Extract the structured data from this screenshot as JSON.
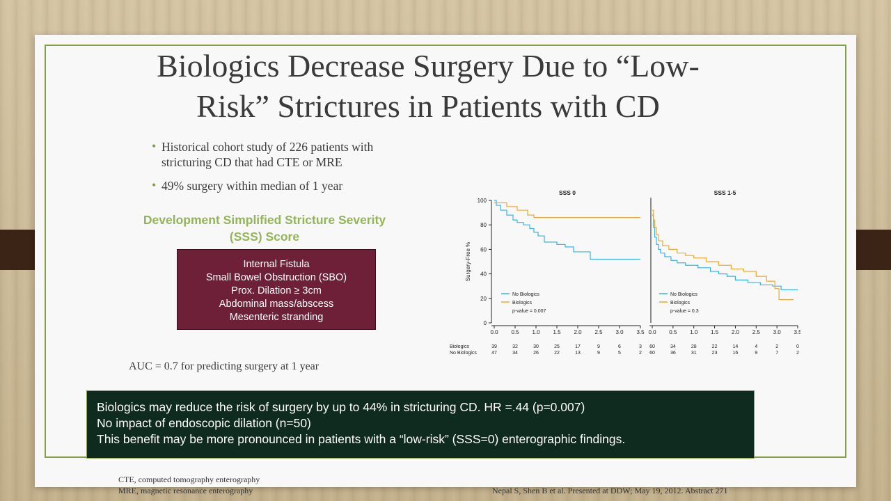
{
  "slide": {
    "title_line1": "Biologics Decrease Surgery Due to “Low-",
    "title_line2": "Risk” Strictures in Patients with CD",
    "bullets": [
      {
        "line1": "Historical cohort study of 226 patients with",
        "line2": "stricturing CD that had CTE or MRE"
      },
      {
        "line1": "49% surgery within median of 1 year",
        "line2": ""
      }
    ],
    "sss_heading_line1": "Development Simplified Stricture Severity",
    "sss_heading_line2": "(SSS) Score",
    "sss_items": [
      "Internal Fistula",
      "Small Bowel Obstruction (SBO)",
      "Prox. Dilation ≥ 3cm",
      "Abdominal mass/abscess",
      "Mesenteric stranding"
    ],
    "auc_text": "AUC = 0.7 for predicting surgery at 1 year",
    "callout_lines": [
      "Biologics may reduce the risk of surgery by up to 44% in stricturing CD. HR =.44 (p=0.007)",
      "No impact of endoscopic dilation (n=50)",
      "This benefit may be more pronounced in patients with a “low-risk” (SSS=0) enterographic findings."
    ],
    "footnote_line1": "CTE, computed tomography enterography",
    "footnote_line2": "MRE, magnetic resonance enterography",
    "citation": "Nepal S, Shen B et al. Presented at DDW; May 19, 2012. Abstract 271"
  },
  "colors": {
    "accent_green": "#86a046",
    "heading_green": "#94b45a",
    "box_maroon": "#6e2038",
    "callout_bg": "#0f2a1f",
    "no_biologics": "#33b5e5",
    "biologics": "#f0a830"
  },
  "chart_data": {
    "type": "line",
    "subtype": "kaplan-meier step",
    "ylabel": "Surgery-Free %",
    "ylim": [
      0,
      100
    ],
    "yticks": [
      "0",
      "20",
      "40",
      "60",
      "80",
      "100"
    ],
    "xlim": [
      0,
      3.5
    ],
    "xticks": [
      "0.0",
      "0.5",
      "1.0",
      "1.5",
      "2.0",
      "2.5",
      "3.0",
      "3.5"
    ],
    "panels": [
      {
        "title": "SSS 0",
        "legend": [
          "No Biologics",
          "Biologics",
          "p-value = 0.007"
        ],
        "series": [
          {
            "name": "No Biologics",
            "color": "#33b5e5",
            "points": [
              [
                0,
                100
              ],
              [
                0.05,
                96
              ],
              [
                0.15,
                92
              ],
              [
                0.3,
                88
              ],
              [
                0.45,
                84
              ],
              [
                0.55,
                82
              ],
              [
                0.7,
                80
              ],
              [
                0.85,
                77
              ],
              [
                0.95,
                74
              ],
              [
                1.05,
                71
              ],
              [
                1.2,
                66
              ],
              [
                1.5,
                64
              ],
              [
                1.7,
                62
              ],
              [
                1.9,
                58
              ],
              [
                2.3,
                52
              ],
              [
                3.5,
                52
              ]
            ]
          },
          {
            "name": "Biologics",
            "color": "#f0a830",
            "points": [
              [
                0,
                98
              ],
              [
                0.3,
                95
              ],
              [
                0.55,
                92
              ],
              [
                0.8,
                88
              ],
              [
                0.95,
                86
              ],
              [
                3.5,
                86
              ]
            ]
          }
        ],
        "at_risk": {
          "Biologics": [
            "39",
            "32",
            "30",
            "25",
            "17",
            "9",
            "6",
            "3"
          ],
          "No Biologics": [
            "47",
            "34",
            "26",
            "22",
            "13",
            "9",
            "5",
            "2"
          ]
        }
      },
      {
        "title": "SSS 1-5",
        "legend": [
          "No Biologics",
          "Biologics",
          "p-value = 0.3"
        ],
        "series": [
          {
            "name": "No Biologics",
            "color": "#33b5e5",
            "points": [
              [
                0,
                88
              ],
              [
                0.03,
                78
              ],
              [
                0.06,
                70
              ],
              [
                0.1,
                64
              ],
              [
                0.15,
                60
              ],
              [
                0.2,
                57
              ],
              [
                0.3,
                54
              ],
              [
                0.45,
                51
              ],
              [
                0.6,
                49
              ],
              [
                0.8,
                47
              ],
              [
                1.1,
                45
              ],
              [
                1.4,
                42
              ],
              [
                1.6,
                40
              ],
              [
                1.8,
                38
              ],
              [
                2.0,
                35
              ],
              [
                2.3,
                33
              ],
              [
                2.6,
                31
              ],
              [
                2.9,
                30
              ],
              [
                3.1,
                27
              ],
              [
                3.5,
                27
              ]
            ]
          },
          {
            "name": "Biologics",
            "color": "#f0a830",
            "points": [
              [
                0,
                92
              ],
              [
                0.03,
                84
              ],
              [
                0.06,
                78
              ],
              [
                0.1,
                72
              ],
              [
                0.15,
                67
              ],
              [
                0.25,
                63
              ],
              [
                0.4,
                60
              ],
              [
                0.6,
                57
              ],
              [
                0.8,
                55
              ],
              [
                1.0,
                53
              ],
              [
                1.3,
                50
              ],
              [
                1.6,
                47
              ],
              [
                1.9,
                44
              ],
              [
                2.2,
                42
              ],
              [
                2.5,
                38
              ],
              [
                2.75,
                34
              ],
              [
                2.95,
                28
              ],
              [
                3.05,
                19
              ],
              [
                3.4,
                19
              ]
            ]
          }
        ],
        "at_risk": {
          "Biologics": [
            "60",
            "34",
            "28",
            "22",
            "14",
            "4",
            "2",
            "0"
          ],
          "No Biologics": [
            "60",
            "36",
            "31",
            "23",
            "16",
            "9",
            "7",
            "2"
          ]
        }
      }
    ],
    "risk_rows": [
      "Biologics",
      "No Biologics"
    ]
  }
}
